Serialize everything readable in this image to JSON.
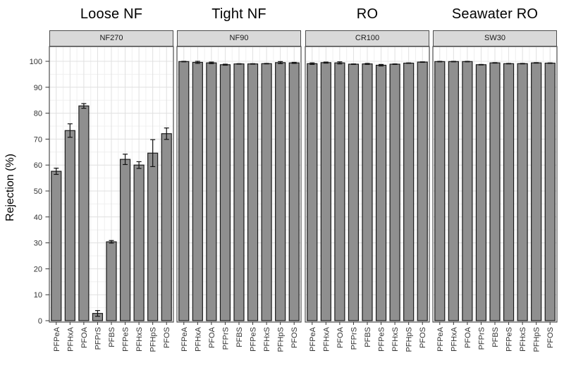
{
  "chart_data": {
    "type": "bar",
    "ylabel": "Rejection (%)",
    "ylim": [
      0,
      100
    ],
    "yticks": [
      0,
      10,
      20,
      30,
      40,
      50,
      60,
      70,
      80,
      90,
      100
    ],
    "grid": true,
    "legend": "none",
    "categories": [
      "PFPeA",
      "PFHxA",
      "PFOA",
      "PFPrS",
      "PFBS",
      "PFPeS",
      "PFHxS",
      "PFHpS",
      "PFOS"
    ],
    "facets": [
      {
        "title": "Loose NF",
        "strip": "NF270",
        "values": [
          57.6,
          73.3,
          82.8,
          2.8,
          30.4,
          62.2,
          60.0,
          64.6,
          72.1
        ],
        "errors": [
          1.2,
          2.6,
          0.9,
          1.1,
          0.5,
          2.0,
          1.3,
          5.2,
          2.2
        ]
      },
      {
        "title": "Tight NF",
        "strip": "NF90",
        "values": [
          99.9,
          99.6,
          99.4,
          98.7,
          99.0,
          99.0,
          99.1,
          99.5,
          99.4
        ],
        "errors": [
          0.1,
          0.4,
          0.3,
          0.2,
          0.1,
          0.1,
          0.1,
          0.4,
          0.2
        ]
      },
      {
        "title": "RO",
        "strip": "CR100",
        "values": [
          99.1,
          99.5,
          99.4,
          98.9,
          99.0,
          98.5,
          98.9,
          99.3,
          99.7
        ],
        "errors": [
          0.3,
          0.2,
          0.4,
          0.1,
          0.2,
          0.3,
          0.1,
          0.1,
          0.1
        ]
      },
      {
        "title": "Seawater RO",
        "strip": "SW30",
        "values": [
          99.9,
          99.9,
          99.9,
          98.7,
          99.4,
          99.1,
          99.1,
          99.4,
          99.3
        ],
        "errors": [
          0.1,
          0.1,
          0.1,
          0.1,
          0.1,
          0.1,
          0.1,
          0.1,
          0.1
        ]
      }
    ],
    "style": {
      "bar_fill": "#8f8f8f",
      "bar_stroke": "#1a1a1a",
      "error_color": "#111111",
      "strip_bg": "#d9d9d9",
      "strip_border": "#4d4d4d",
      "panel_border": "#4d4d4d",
      "grid_major": "#e0e0e0",
      "grid_minor": "#f0f0f0",
      "tick_color": "#333333",
      "tick_label_color": "#333333"
    }
  }
}
